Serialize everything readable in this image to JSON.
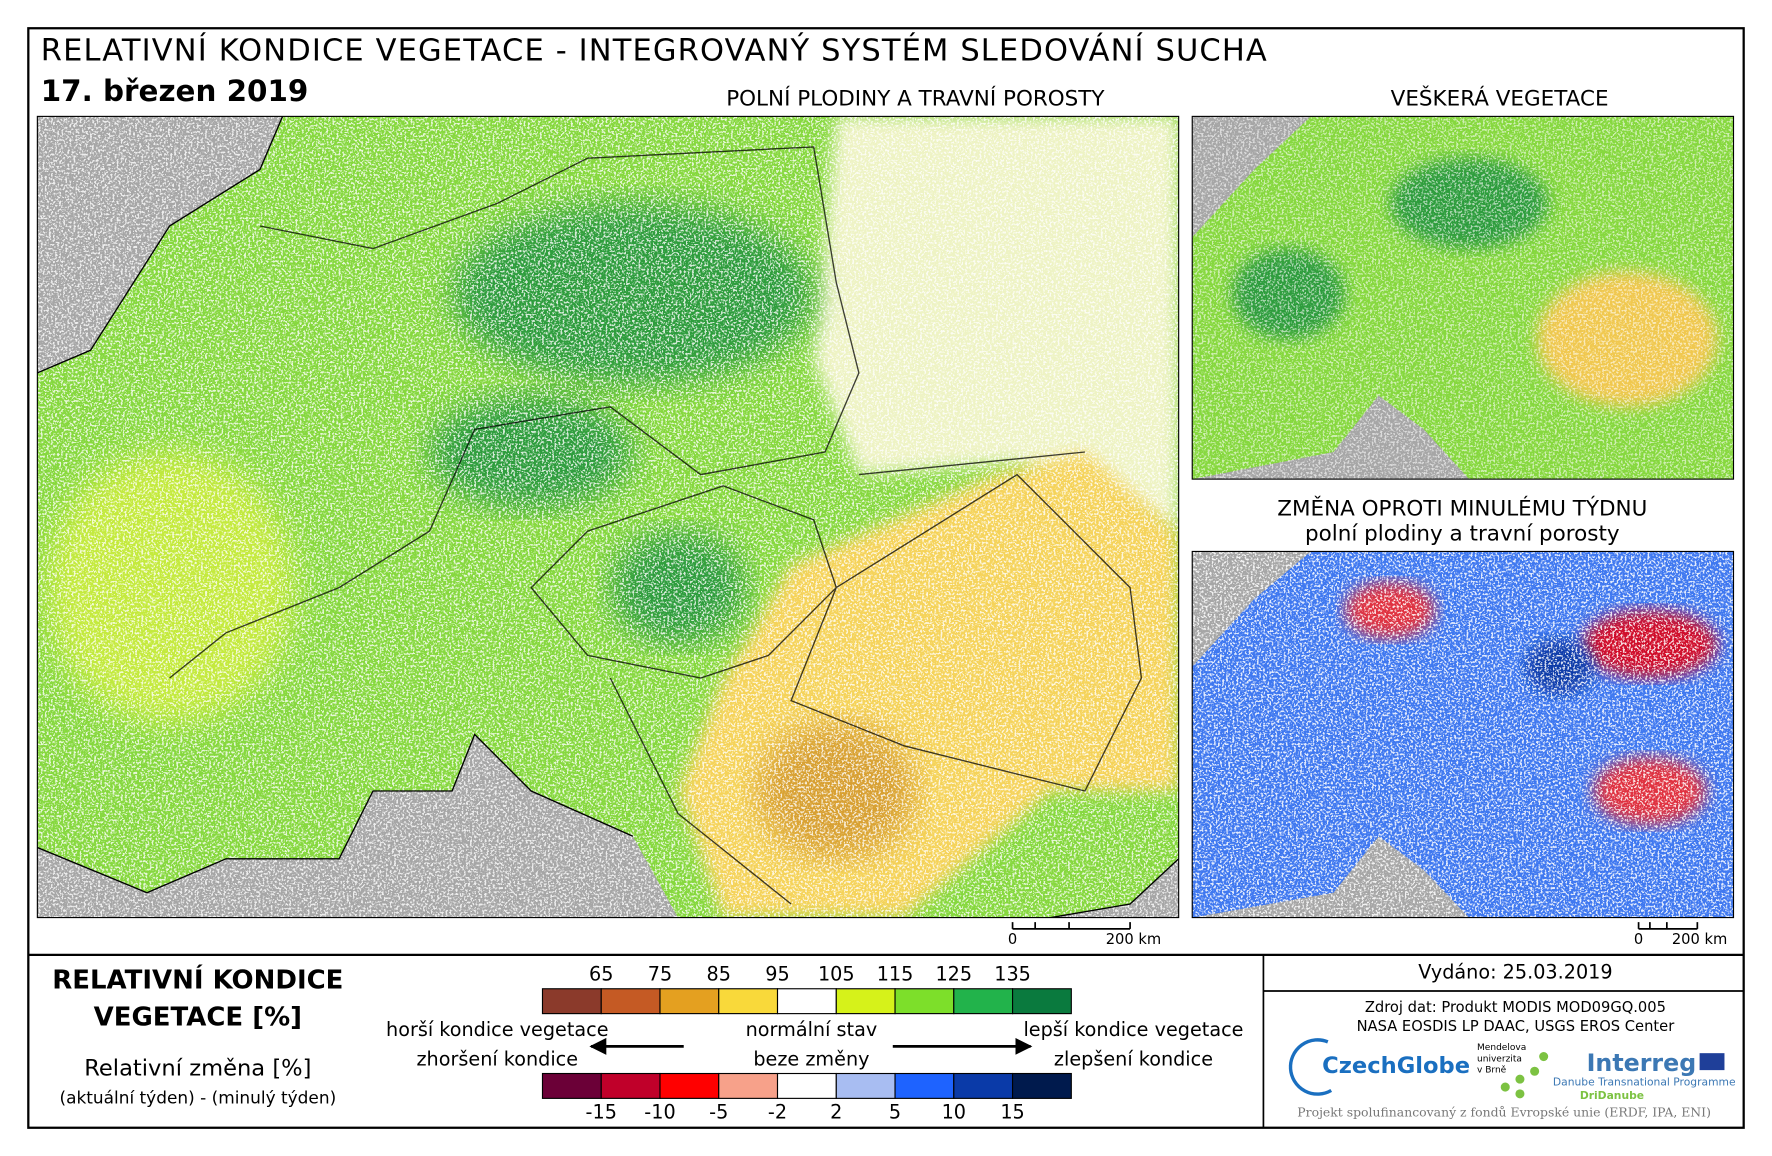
{
  "header": {
    "title": "RELATIVNÍ KONDICE VEGETACE - INTEGROVANÝ SYSTÉM SLEDOVÁNÍ SUCHA",
    "date": "17. březen 2019"
  },
  "maps": [
    {
      "title": "POLNÍ PLODINY A TRAVNÍ POROSTY",
      "scale_zero": 0,
      "scale_label": "200 km"
    },
    {
      "title": "VEŠKERÁ VEGETACE"
    },
    {
      "title": "ZMĚNA OPROTI MINULÉMU TÝDNU",
      "subtitle": "polní plodiny a travní porosty",
      "scale_zero": 0,
      "scale_label": "200 km"
    }
  ],
  "legend": {
    "condition_title_line1": "RELATIVNÍ KONDICE",
    "condition_title_line2": "VEGETACE [%]",
    "change_title": "Relativní změna [%]",
    "change_subtitle": "(aktuální týden) - (minulý týden)",
    "condition": {
      "colors": [
        "#8b3a2b",
        "#c55a24",
        "#e4a020",
        "#f9d93a",
        "#ffffff",
        "#d6f21a",
        "#7ddf2a",
        "#22b34b",
        "#0a7a3e"
      ],
      "ticks": [
        65,
        75,
        85,
        95,
        105,
        115,
        125,
        135
      ]
    },
    "change": {
      "colors": [
        "#6b0037",
        "#c0002a",
        "#ff0000",
        "#f7a18a",
        "#ffffff",
        "#a8bdf2",
        "#1e63ff",
        "#0a3aa8",
        "#001a4d"
      ],
      "ticks": [
        -15,
        -10,
        -5,
        -2,
        2,
        5,
        10,
        15
      ]
    },
    "worse_condition": "horší kondice vegetace",
    "worsening": "zhoršení kondice",
    "normal_state": "normální stav",
    "no_change": "beze změny",
    "better_condition": "lepší kondice vegetace",
    "improvement": "zlepšení kondice"
  },
  "footer": {
    "issued": "Vydáno: 25.03.2019",
    "source_line1": "Zdroj dat: Produkt MODIS MOD09GQ.005",
    "source_line2": "NASA EOSDIS LP DAAC, USGS EROS Center",
    "logo_czechglobe": "CzechGlobe",
    "logo_mendel_line1": "Mendelova",
    "logo_mendel_line2": "univerzita",
    "logo_mendel_line3": "v Brně",
    "logo_interreg": "Interreg",
    "logo_programme": "Danube Transnational Programme",
    "logo_dridanube": "DriDanube",
    "funding": "Projekt spolufinancovaný z fondů Evropské unie (ERDF, IPA, ENI)"
  }
}
